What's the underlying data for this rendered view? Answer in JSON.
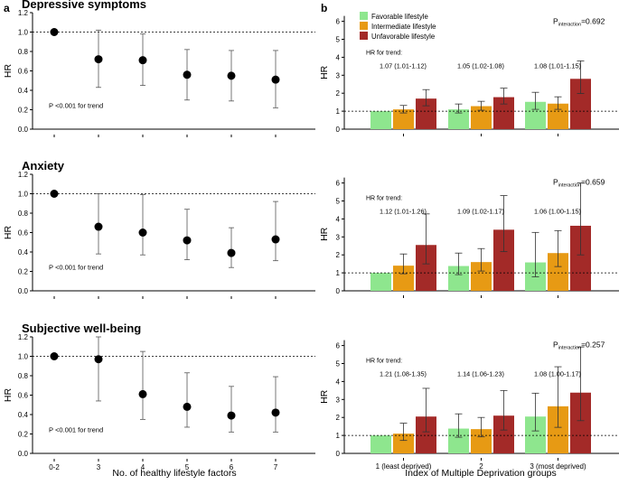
{
  "panel_labels": {
    "a": "a",
    "b": "b"
  },
  "colors": {
    "favorable": "#8ee68e",
    "intermediate": "#e79a14",
    "unfavorable": "#a32a28",
    "axis": "#000000"
  },
  "left": {
    "xlabel": "No. of healthy lifestyle factors",
    "ylabel": "HR",
    "trend_note": "P <0.001 for trend",
    "categories": [
      "0-2",
      "3",
      "4",
      "5",
      "6",
      "7"
    ]
  },
  "right": {
    "xlabel": "Index of Multiple Deprivation groups",
    "ylabel": "HR",
    "categories": [
      "1 (least deprived)",
      "2",
      "3 (most deprived)"
    ],
    "legend": [
      "Favorable lifestyle",
      "Intermediate lifestyle",
      "Unfavorable lifestyle"
    ],
    "trend_label": "HR for trend:",
    "p_prefix": "P",
    "p_sub": "interaction"
  },
  "chart_data": [
    {
      "type": "scatter",
      "title": "Depressive symptoms",
      "ylabel": "HR",
      "ylim": [
        0,
        1.2
      ],
      "yticks": [
        "0.0",
        "0.2",
        "0.4",
        "0.6",
        "0.8",
        "1.0",
        "1.2"
      ],
      "x": [
        "0-2",
        "3",
        "4",
        "5",
        "6",
        "7"
      ],
      "hr": [
        1.0,
        0.72,
        0.71,
        0.56,
        0.55,
        0.51
      ],
      "lower": [
        1.0,
        0.43,
        0.45,
        0.3,
        0.29,
        0.22
      ],
      "upper": [
        1.0,
        1.02,
        0.98,
        0.82,
        0.81,
        0.81
      ],
      "reference_line": 1.0,
      "annotation": "P <0.001 for trend"
    },
    {
      "type": "bar",
      "title": "",
      "ylim": [
        0,
        6.3
      ],
      "yticks": [
        "0",
        "1",
        "2",
        "3",
        "4",
        "5",
        "6"
      ],
      "categories": [
        "1 (least deprived)",
        "2",
        "3 (most deprived)"
      ],
      "series": [
        {
          "name": "Favorable lifestyle",
          "values": [
            1.0,
            1.1,
            1.52
          ],
          "lower": [
            1.0,
            0.9,
            1.1
          ],
          "upper": [
            1.0,
            1.4,
            2.05
          ]
        },
        {
          "name": "Intermediate lifestyle",
          "values": [
            1.1,
            1.28,
            1.42
          ],
          "lower": [
            0.9,
            1.05,
            1.1
          ],
          "upper": [
            1.32,
            1.55,
            1.8
          ]
        },
        {
          "name": "Unfavorable lifestyle",
          "values": [
            1.7,
            1.78,
            2.8
          ],
          "lower": [
            1.3,
            1.4,
            1.98
          ],
          "upper": [
            2.2,
            2.28,
            3.8
          ]
        }
      ],
      "p_interaction": "=0.692",
      "trend": [
        "1.07 (1.01-1.12)",
        "1.05 (1.02-1.08)",
        "1.08 (1.01-1.15)"
      ],
      "reference_line": 1.0
    },
    {
      "type": "scatter",
      "title": "Anxiety",
      "ylabel": "HR",
      "ylim": [
        0,
        1.2
      ],
      "yticks": [
        "0.0",
        "0.2",
        "0.4",
        "0.6",
        "0.8",
        "1.0",
        "1.2"
      ],
      "x": [
        "0-2",
        "3",
        "4",
        "5",
        "6",
        "7"
      ],
      "hr": [
        1.0,
        0.66,
        0.6,
        0.52,
        0.39,
        0.53
      ],
      "lower": [
        1.0,
        0.38,
        0.37,
        0.32,
        0.24,
        0.31
      ],
      "upper": [
        1.0,
        1.0,
        0.99,
        0.84,
        0.65,
        0.92
      ],
      "reference_line": 1.0,
      "annotation": "P <0.001 for trend"
    },
    {
      "type": "bar",
      "title": "",
      "ylim": [
        0,
        6.3
      ],
      "yticks": [
        "0",
        "1",
        "2",
        "3",
        "4",
        "5",
        "6"
      ],
      "categories": [
        "1 (least deprived)",
        "2",
        "3 (most deprived)"
      ],
      "series": [
        {
          "name": "Favorable lifestyle",
          "values": [
            1.0,
            1.38,
            1.58
          ],
          "lower": [
            1.0,
            0.9,
            0.78
          ],
          "upper": [
            1.0,
            2.1,
            3.25
          ]
        },
        {
          "name": "Intermediate lifestyle",
          "values": [
            1.4,
            1.6,
            2.1
          ],
          "lower": [
            0.95,
            1.1,
            1.35
          ],
          "upper": [
            2.05,
            2.35,
            3.35
          ]
        },
        {
          "name": "Unfavorable lifestyle",
          "values": [
            2.55,
            3.4,
            3.62
          ],
          "lower": [
            1.5,
            2.18,
            2.0
          ],
          "upper": [
            4.28,
            5.3,
            6.0
          ]
        }
      ],
      "p_interaction": "=0.659",
      "trend": [
        "1.12 (1.01-1.26)",
        "1.09 (1.02-1.17)",
        "1.06 (1.00-1.15)"
      ],
      "reference_line": 1.0
    },
    {
      "type": "scatter",
      "title": "Subjective well-being",
      "ylabel": "HR",
      "ylim": [
        0,
        1.2
      ],
      "yticks": [
        "0.0",
        "0.2",
        "0.4",
        "0.6",
        "0.8",
        "1.0",
        "1.2"
      ],
      "x": [
        "0-2",
        "3",
        "4",
        "5",
        "6",
        "7"
      ],
      "hr": [
        1.0,
        0.97,
        0.61,
        0.48,
        0.39,
        0.42
      ],
      "lower": [
        1.0,
        0.54,
        0.35,
        0.27,
        0.22,
        0.22
      ],
      "upper": [
        1.0,
        1.2,
        1.05,
        0.83,
        0.69,
        0.79
      ],
      "reference_line": 1.0,
      "annotation": "P <0.001 for trend"
    },
    {
      "type": "bar",
      "title": "",
      "ylim": [
        0,
        6.3
      ],
      "yticks": [
        "0",
        "1",
        "2",
        "3",
        "4",
        "5",
        "6"
      ],
      "categories": [
        "1 (least deprived)",
        "2",
        "3 (most deprived)"
      ],
      "series": [
        {
          "name": "Favorable lifestyle",
          "values": [
            1.0,
            1.38,
            2.05
          ],
          "lower": [
            1.0,
            0.9,
            1.25
          ],
          "upper": [
            1.0,
            2.2,
            3.35
          ]
        },
        {
          "name": "Intermediate lifestyle",
          "values": [
            1.1,
            1.35,
            2.62
          ],
          "lower": [
            0.72,
            0.92,
            1.45
          ],
          "upper": [
            1.68,
            2.0,
            4.82
          ]
        },
        {
          "name": "Unfavorable lifestyle",
          "values": [
            2.05,
            2.1,
            3.38
          ],
          "lower": [
            1.2,
            1.3,
            1.82
          ],
          "upper": [
            3.62,
            3.5,
            5.92
          ]
        }
      ],
      "p_interaction": "=0.257",
      "trend": [
        "1.21 (1.08-1.35)",
        "1.14 (1.06-1.23)",
        "1.08 (1.00-1.17)"
      ],
      "reference_line": 1.0
    }
  ]
}
